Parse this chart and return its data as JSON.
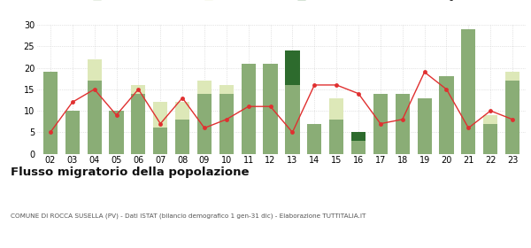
{
  "years": [
    "02",
    "03",
    "04",
    "05",
    "06",
    "07",
    "08",
    "09",
    "10",
    "11",
    "12",
    "13",
    "14",
    "15",
    "16",
    "17",
    "18",
    "19",
    "20",
    "21",
    "22",
    "23"
  ],
  "iscritti_comuni": [
    19,
    10,
    17,
    10,
    14,
    6,
    8,
    14,
    14,
    21,
    21,
    16,
    7,
    8,
    3,
    14,
    14,
    13,
    18,
    29,
    7,
    17
  ],
  "iscritti_estero": [
    0,
    0,
    5,
    0,
    2,
    6,
    4,
    3,
    2,
    0,
    0,
    0,
    0,
    5,
    0,
    0,
    0,
    0,
    0,
    0,
    2,
    2
  ],
  "iscritti_altri": [
    0,
    0,
    0,
    0,
    0,
    0,
    0,
    0,
    0,
    0,
    0,
    8,
    0,
    0,
    2,
    0,
    0,
    0,
    0,
    0,
    0,
    0
  ],
  "cancellati": [
    5,
    12,
    15,
    9,
    15,
    7,
    13,
    6,
    8,
    11,
    11,
    5,
    16,
    16,
    14,
    7,
    8,
    19,
    15,
    6,
    10,
    8
  ],
  "color_comuni": "#8aad76",
  "color_estero": "#dde8b8",
  "color_altri": "#2d6b2d",
  "color_cancellati": "#e03030",
  "ylabel_max": 30,
  "yticks": [
    0,
    5,
    10,
    15,
    20,
    25,
    30
  ],
  "title": "Flusso migratorio della popolazione",
  "subtitle": "COMUNE DI ROCCA SUSELLA (PV) - Dati ISTAT (bilancio demografico 1 gen-31 dic) - Elaborazione TUTTITALIA.IT",
  "bg_color": "#ffffff"
}
